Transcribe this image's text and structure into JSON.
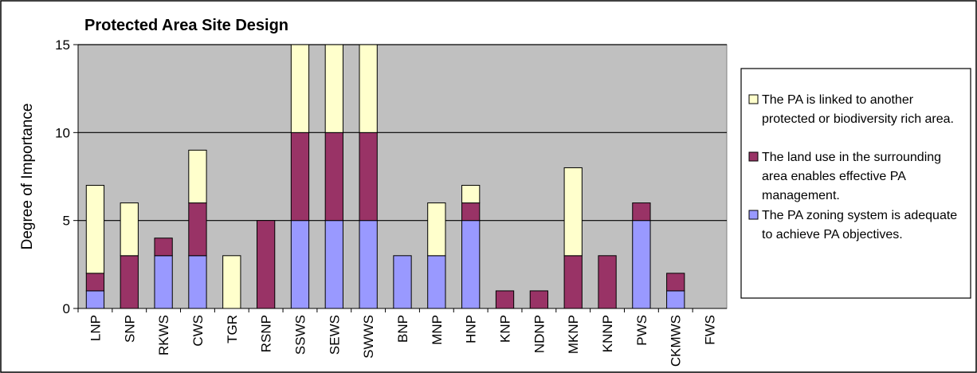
{
  "chart_data": {
    "type": "bar",
    "stacked": true,
    "title": "Protected Area Site Design",
    "ylabel": "Degree of Importance",
    "ylim": [
      0,
      15
    ],
    "yticks": [
      0,
      5,
      10,
      15
    ],
    "grid": true,
    "legend_position": "right",
    "categories": [
      "LNP",
      "SNP",
      "RKWS",
      "CWS",
      "TGR",
      "RSNP",
      "SSWS",
      "SEWS",
      "SWWS",
      "BNP",
      "MNP",
      "HNP",
      "KNP",
      "NDNP",
      "MKNP",
      "KNNP",
      "PWS",
      "CKMWS",
      "FWS"
    ],
    "series": [
      {
        "name": "The PA zoning system is adequate to achieve PA objectives.",
        "legend_lines": [
          "The PA zoning system is adequate",
          "to achieve PA objectives."
        ],
        "color": "#9999ff",
        "values": [
          1,
          0,
          3,
          3,
          0,
          0,
          5,
          5,
          5,
          3,
          3,
          5,
          0,
          0,
          0,
          0,
          5,
          1,
          0
        ]
      },
      {
        "name": "The land use in the surrounding area enables effective PA management.",
        "legend_lines": [
          "The land use in the surrounding",
          "area enables effective PA",
          "management."
        ],
        "color": "#993366",
        "values": [
          1,
          3,
          1,
          3,
          0,
          5,
          5,
          5,
          5,
          0,
          0,
          1,
          1,
          1,
          3,
          3,
          1,
          1,
          0
        ]
      },
      {
        "name": "The PA is linked to another protected or biodiversity rich area.",
        "legend_lines": [
          "The PA is linked to another",
          "protected or biodiversity rich area."
        ],
        "color": "#ffffcc",
        "values": [
          5,
          3,
          0,
          3,
          3,
          0,
          5,
          5,
          5,
          0,
          3,
          1,
          0,
          0,
          5,
          0,
          0,
          0,
          0
        ]
      }
    ],
    "colors": {
      "plot_background": "#c0c0c0",
      "gridline": "#000000",
      "bar_edge": "#000000"
    }
  }
}
